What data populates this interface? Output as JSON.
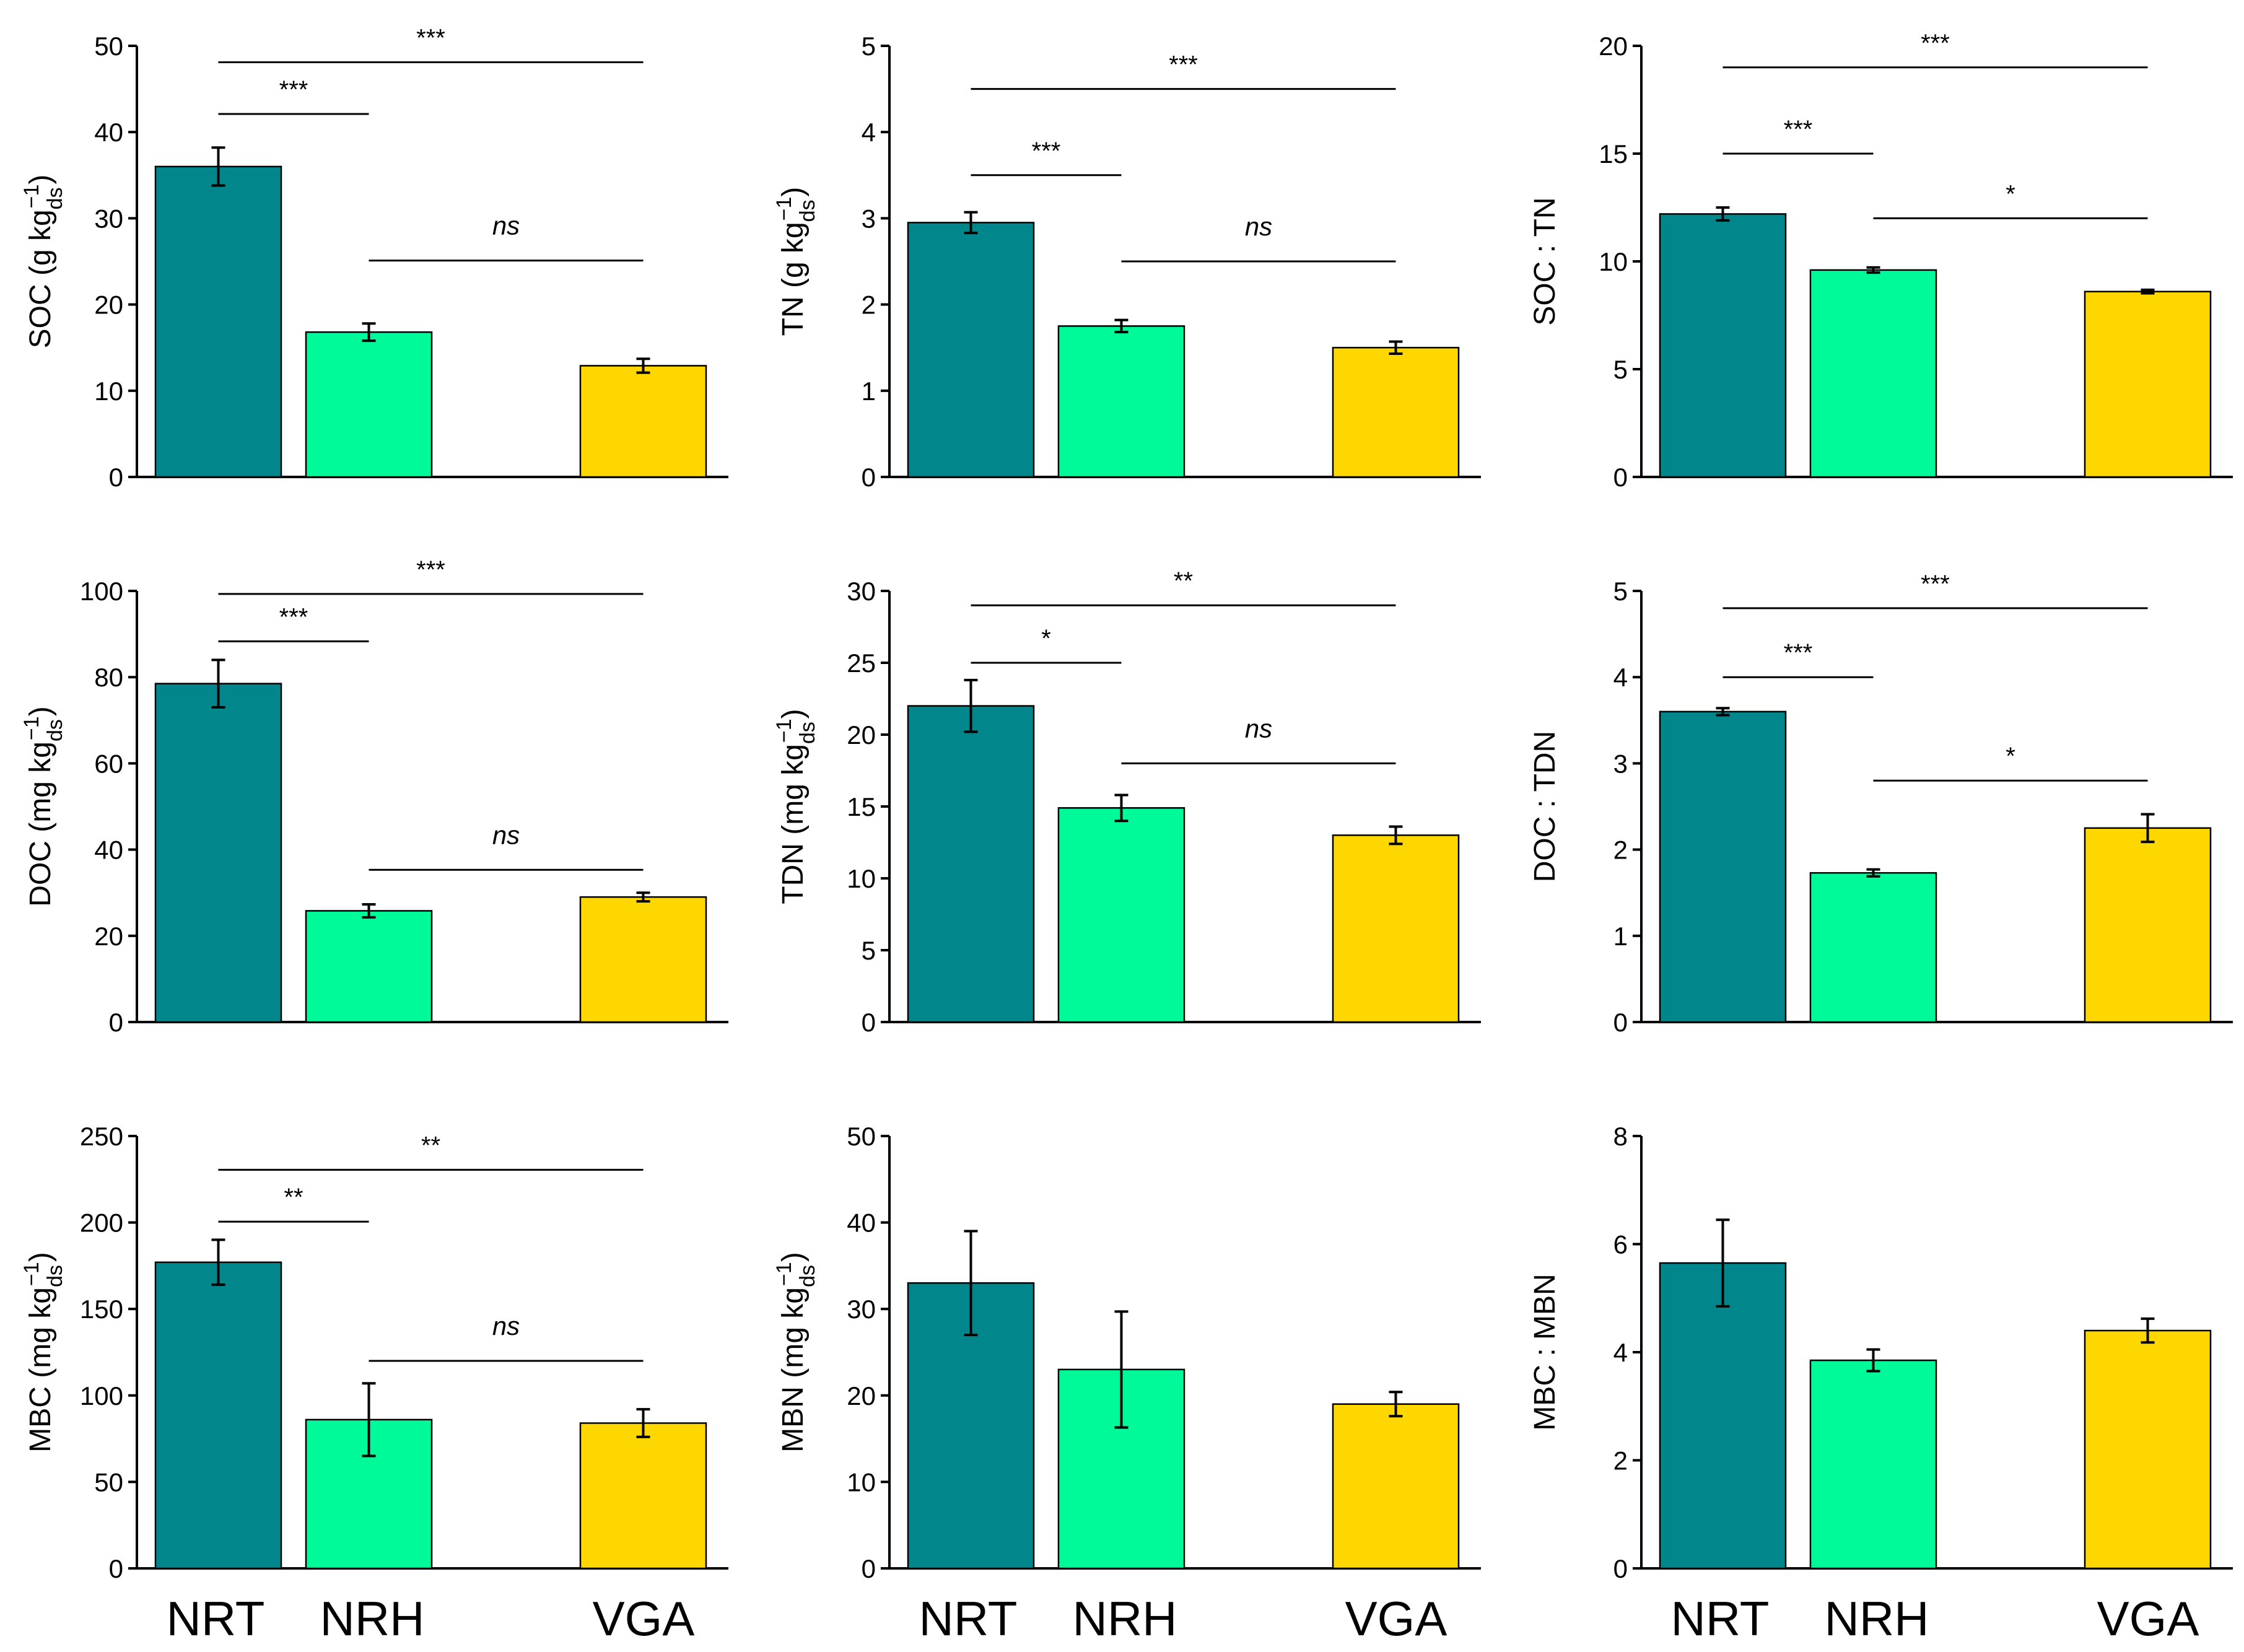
{
  "colors": {
    "NRT": "#00868B",
    "NRH": "#00FA9A",
    "VGA": "#FFD700",
    "axis": "#000000"
  },
  "chart_data": [
    {
      "type": "bar",
      "id": "soc",
      "ylabel": {
        "main": "SOC (g kg",
        "sub": "ds",
        "sup": "−1",
        "close": ")"
      },
      "categories": [
        "NRT",
        "NRH",
        "VGA"
      ],
      "ylim": [
        0,
        50
      ],
      "yticks": [
        0,
        10,
        20,
        30,
        40,
        50
      ],
      "values": [
        36,
        16.8,
        12.9
      ],
      "errors": [
        2.2,
        1.0,
        0.8
      ],
      "comparisons": [
        {
          "from": 0,
          "to": 1,
          "label": "***",
          "y": 42.1
        },
        {
          "from": 0,
          "to": 2,
          "label": "***",
          "y": 48.1
        },
        {
          "from": 1,
          "to": 2,
          "label": "ns",
          "y": 25.1
        }
      ]
    },
    {
      "type": "bar",
      "id": "tn",
      "ylabel": {
        "main": "TN (g kg",
        "sub": "ds",
        "sup": "−1",
        "close": ")"
      },
      "categories": [
        "NRT",
        "NRH",
        "VGA"
      ],
      "ylim": [
        0,
        5
      ],
      "yticks": [
        0,
        1,
        2,
        3,
        4,
        5
      ],
      "values": [
        2.95,
        1.75,
        1.5
      ],
      "errors": [
        0.12,
        0.07,
        0.07
      ],
      "comparisons": [
        {
          "from": 0,
          "to": 1,
          "label": "***",
          "y": 3.5
        },
        {
          "from": 0,
          "to": 2,
          "label": "***",
          "y": 4.5
        },
        {
          "from": 1,
          "to": 2,
          "label": "ns",
          "y": 2.5
        }
      ]
    },
    {
      "type": "bar",
      "id": "soc-tn",
      "ylabel": {
        "main": "SOC : TN"
      },
      "categories": [
        "NRT",
        "NRH",
        "VGA"
      ],
      "ylim": [
        0,
        20
      ],
      "yticks": [
        0,
        5,
        10,
        15,
        20
      ],
      "values": [
        12.2,
        9.6,
        8.6
      ],
      "errors": [
        0.3,
        0.12,
        0.08
      ],
      "comparisons": [
        {
          "from": 0,
          "to": 1,
          "label": "***",
          "y": 15
        },
        {
          "from": 0,
          "to": 2,
          "label": "***",
          "y": 19
        },
        {
          "from": 1,
          "to": 2,
          "label": "*",
          "y": 12
        }
      ]
    },
    {
      "type": "bar",
      "id": "doc",
      "ylabel": {
        "main": "DOC (mg kg",
        "sub": "ds",
        "sup": "−1",
        "close": ")"
      },
      "categories": [
        "NRT",
        "NRH",
        "VGA"
      ],
      "ylim": [
        0,
        100
      ],
      "yticks": [
        0,
        20,
        40,
        60,
        80,
        100
      ],
      "values": [
        78.5,
        25.8,
        29
      ],
      "errors": [
        5.5,
        1.5,
        1.0
      ],
      "comparisons": [
        {
          "from": 0,
          "to": 1,
          "label": "***",
          "y": 88.3
        },
        {
          "from": 0,
          "to": 2,
          "label": "***",
          "y": 99.3
        },
        {
          "from": 1,
          "to": 2,
          "label": "ns",
          "y": 35.3
        }
      ]
    },
    {
      "type": "bar",
      "id": "tdn",
      "ylabel": {
        "main": "TDN (mg kg",
        "sub": "ds",
        "sup": "−1",
        "close": ")"
      },
      "categories": [
        "NRT",
        "NRH",
        "VGA"
      ],
      "ylim": [
        0,
        30
      ],
      "yticks": [
        0,
        5,
        10,
        15,
        20,
        25,
        30
      ],
      "values": [
        22,
        14.9,
        13
      ],
      "errors": [
        1.8,
        0.9,
        0.6
      ],
      "comparisons": [
        {
          "from": 0,
          "to": 1,
          "label": "*",
          "y": 25
        },
        {
          "from": 0,
          "to": 2,
          "label": "**",
          "y": 29
        },
        {
          "from": 1,
          "to": 2,
          "label": "ns",
          "y": 18
        }
      ]
    },
    {
      "type": "bar",
      "id": "doc-tdn",
      "ylabel": {
        "main": "DOC : TDN"
      },
      "categories": [
        "NRT",
        "NRH",
        "VGA"
      ],
      "ylim": [
        0,
        5
      ],
      "yticks": [
        0,
        1,
        2,
        3,
        4,
        5
      ],
      "values": [
        3.6,
        1.73,
        2.25
      ],
      "errors": [
        0.04,
        0.04,
        0.16
      ],
      "comparisons": [
        {
          "from": 0,
          "to": 1,
          "label": "***",
          "y": 4
        },
        {
          "from": 0,
          "to": 2,
          "label": "***",
          "y": 4.8
        },
        {
          "from": 1,
          "to": 2,
          "label": "*",
          "y": 2.8
        }
      ]
    },
    {
      "type": "bar",
      "id": "mbc",
      "ylabel": {
        "main": "MBC (mg kg",
        "sub": "ds",
        "sup": "−1",
        "close": ")"
      },
      "categories": [
        "NRT",
        "NRH",
        "VGA"
      ],
      "ylim": [
        0,
        250
      ],
      "yticks": [
        0,
        50,
        100,
        150,
        200,
        250
      ],
      "values": [
        177,
        86,
        84
      ],
      "errors": [
        13,
        21,
        8
      ],
      "comparisons": [
        {
          "from": 0,
          "to": 1,
          "label": "**",
          "y": 200.5
        },
        {
          "from": 0,
          "to": 2,
          "label": "**",
          "y": 230.5
        },
        {
          "from": 1,
          "to": 2,
          "label": "ns",
          "y": 120
        }
      ]
    },
    {
      "type": "bar",
      "id": "mbn",
      "ylabel": {
        "main": "MBN (mg kg",
        "sub": "ds",
        "sup": "−1",
        "close": ")"
      },
      "categories": [
        "NRT",
        "NRH",
        "VGA"
      ],
      "ylim": [
        0,
        50
      ],
      "yticks": [
        0,
        10,
        20,
        30,
        40,
        50
      ],
      "values": [
        33,
        23,
        19
      ],
      "errors": [
        6,
        6.7,
        1.4
      ],
      "comparisons": []
    },
    {
      "type": "bar",
      "id": "mbc-mbn",
      "ylabel": {
        "main": "MBC : MBN"
      },
      "categories": [
        "NRT",
        "NRH",
        "VGA"
      ],
      "ylim": [
        0,
        8
      ],
      "yticks": [
        0,
        2,
        4,
        6,
        8
      ],
      "values": [
        5.65,
        3.85,
        4.4
      ],
      "errors": [
        0.8,
        0.2,
        0.22
      ],
      "comparisons": []
    }
  ]
}
